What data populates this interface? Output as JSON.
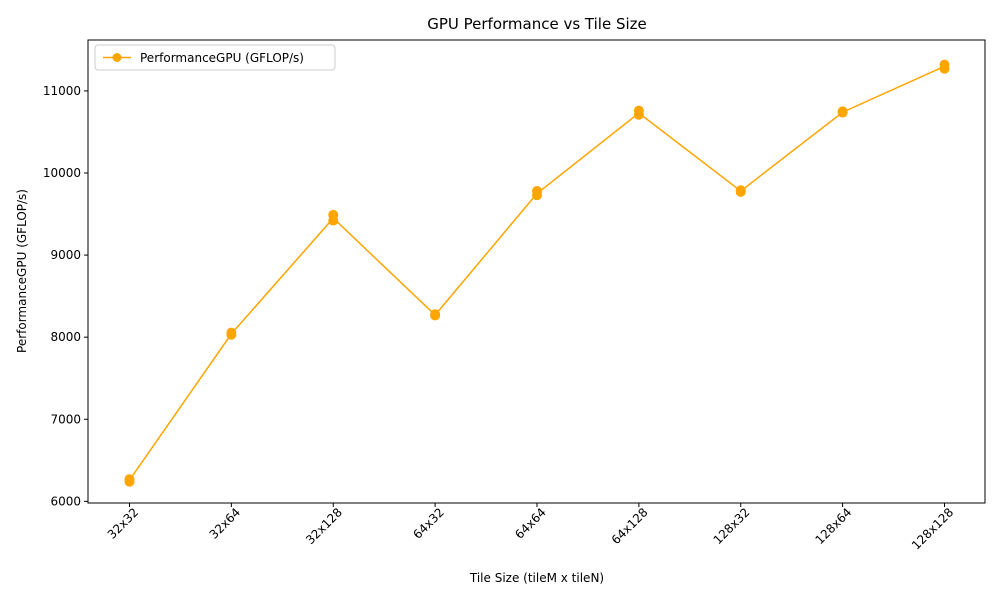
{
  "chart_data": {
    "type": "line",
    "title": "GPU Performance vs Tile Size",
    "xlabel": "Tile Size (tileM x tileN)",
    "ylabel": "PerformanceGPU (GFLOP/s)",
    "categories": [
      "32x32",
      "32x64",
      "32x128",
      "64x32",
      "64x64",
      "64x128",
      "128x32",
      "128x64",
      "128x128"
    ],
    "yticks": [
      6000,
      7000,
      8000,
      9000,
      10000,
      11000
    ],
    "ylim": [
      5980,
      11620
    ],
    "grid": false,
    "legend_position": "top-left",
    "color": "#FFA500",
    "series": [
      {
        "name": "PerformanceGPU (GFLOP/s)",
        "line_values": [
          6260,
          8040,
          9450,
          8270,
          9750,
          10730,
          9780,
          10740,
          11300
        ],
        "points": [
          {
            "x": "32x32",
            "y": 6270
          },
          {
            "x": "32x32",
            "y": 6240
          },
          {
            "x": "32x64",
            "y": 8055
          },
          {
            "x": "32x64",
            "y": 8030
          },
          {
            "x": "32x128",
            "y": 9490
          },
          {
            "x": "32x128",
            "y": 9420
          },
          {
            "x": "64x32",
            "y": 8280
          },
          {
            "x": "64x32",
            "y": 8265
          },
          {
            "x": "64x64",
            "y": 9780
          },
          {
            "x": "64x64",
            "y": 9730
          },
          {
            "x": "64x128",
            "y": 10760
          },
          {
            "x": "64x128",
            "y": 10710
          },
          {
            "x": "128x32",
            "y": 9790
          },
          {
            "x": "128x32",
            "y": 9770
          },
          {
            "x": "128x64",
            "y": 10750
          },
          {
            "x": "128x64",
            "y": 10735
          },
          {
            "x": "128x128",
            "y": 11320
          },
          {
            "x": "128x128",
            "y": 11270
          }
        ]
      }
    ]
  }
}
